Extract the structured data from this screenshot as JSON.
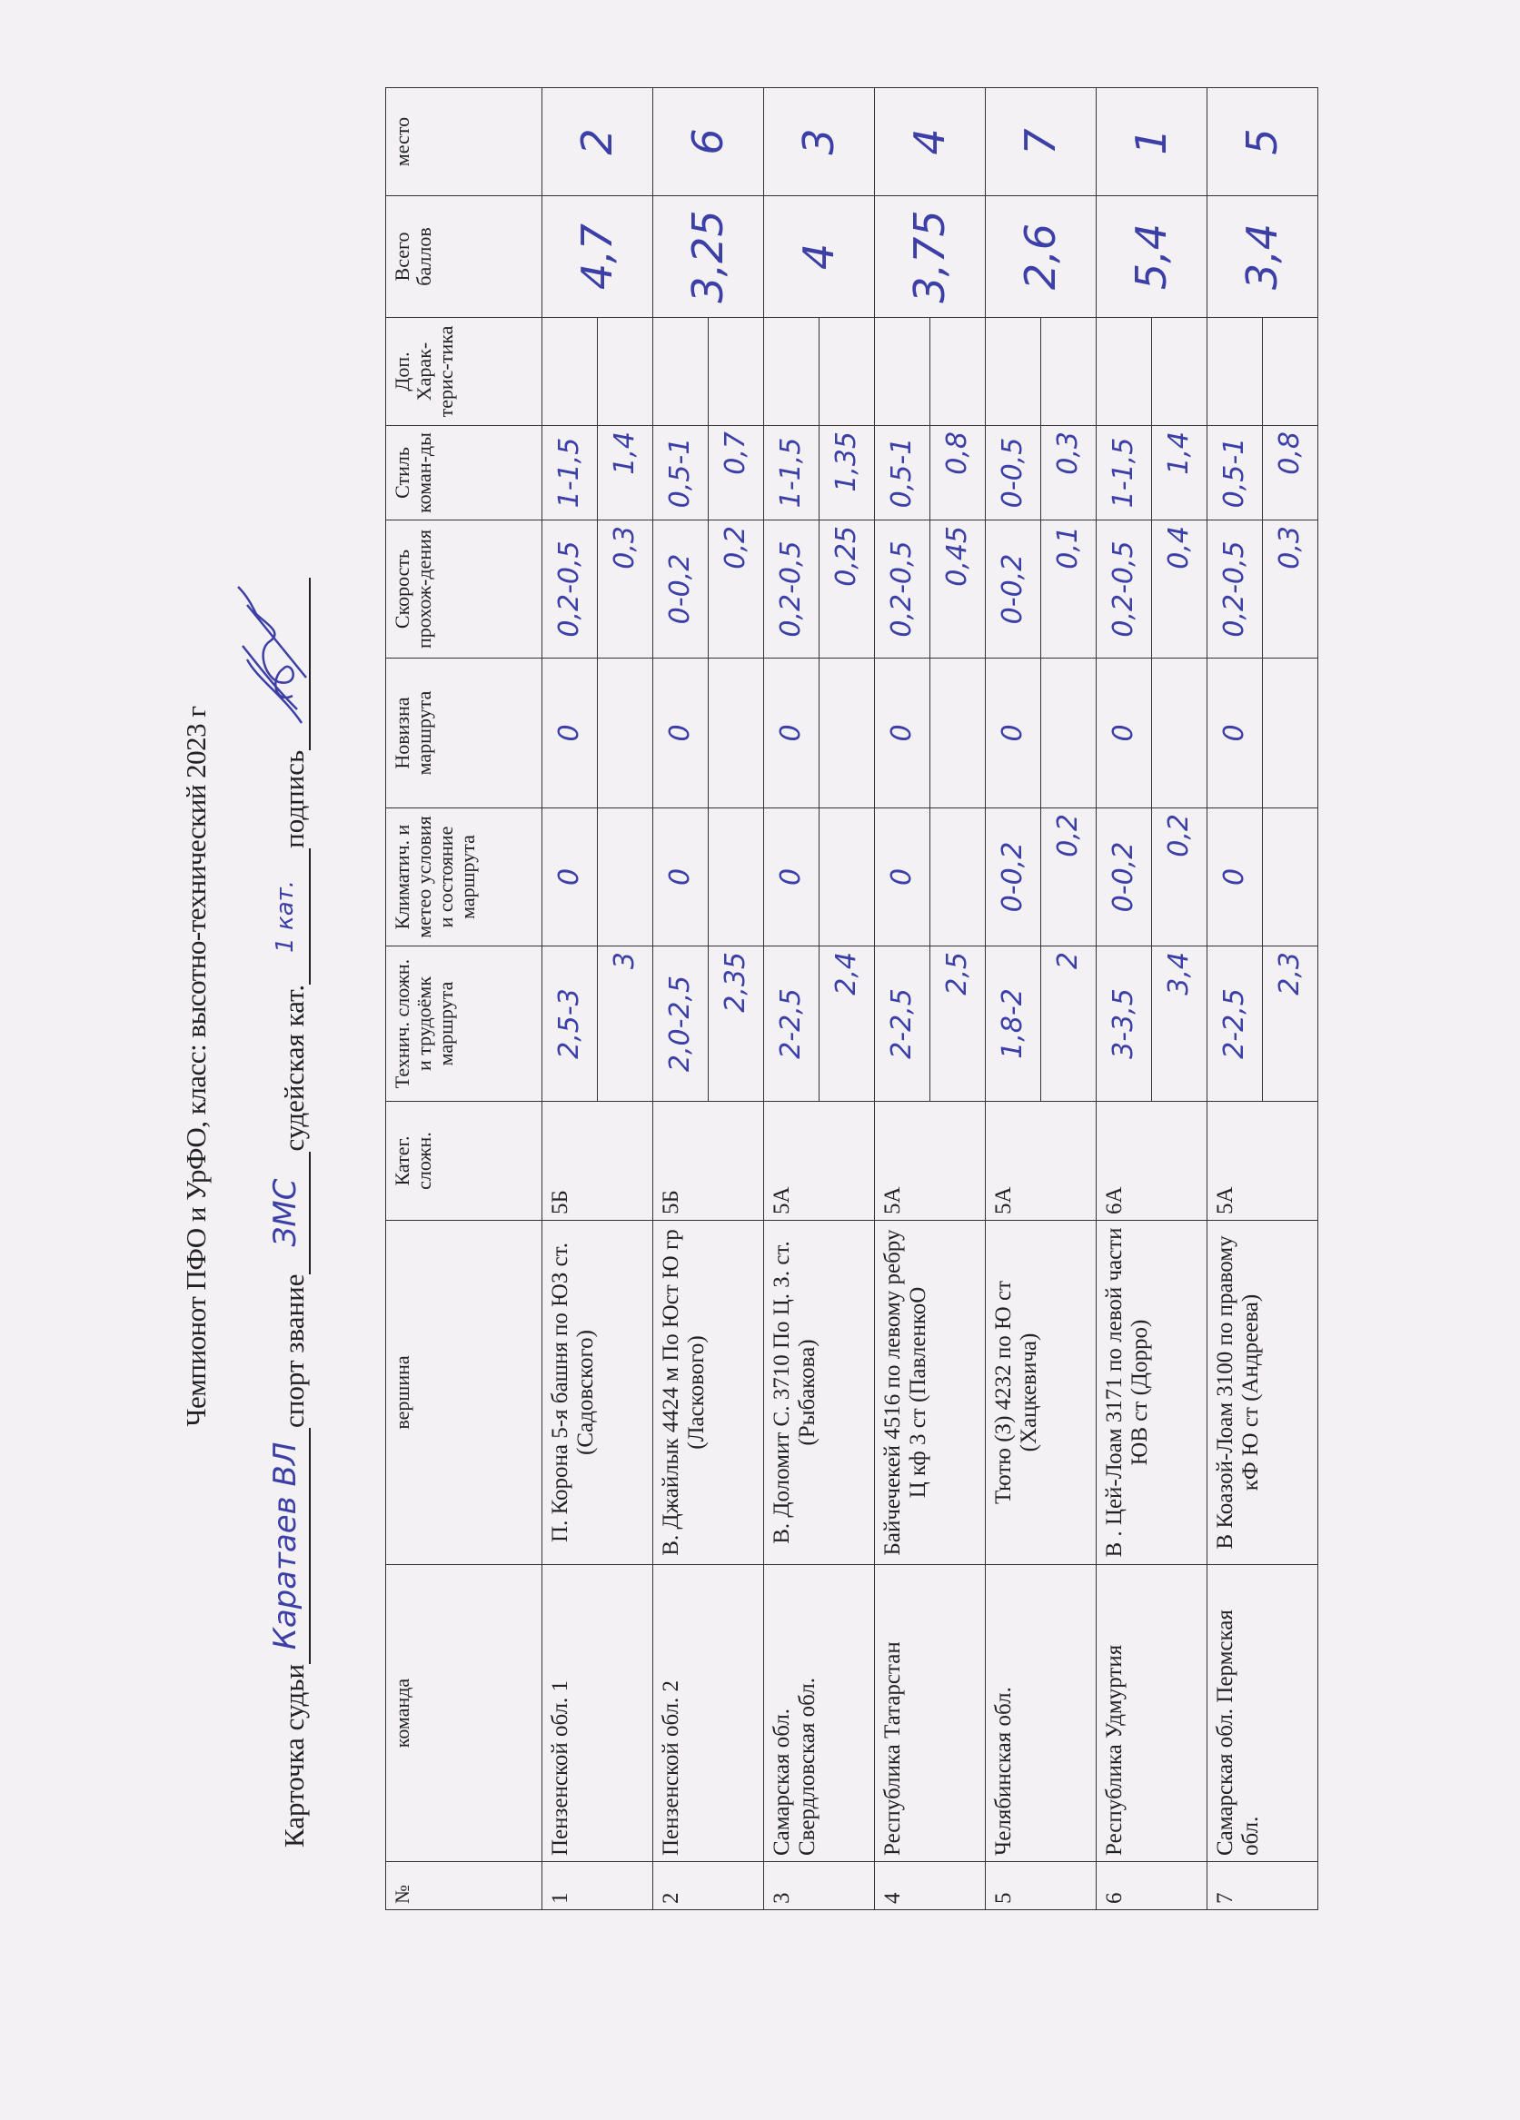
{
  "title": "Чемпионот ПФО и УрФО, класс: высотно-технический 2023 г",
  "judge": {
    "card_label": "Карточка судьи",
    "name": "Каратаев ВЛ",
    "rank_label": "спорт звание",
    "rank": "ЗМС",
    "category_label": "судейская кат.",
    "category": "1 кат.",
    "signature_label": "подпись",
    "signature": "handwritten signature"
  },
  "table": {
    "headers": [
      "№",
      "команда",
      "вершина",
      "Катег. сложн.",
      "Технич. сложн. и трудоёмк маршрута",
      "Климатич. и метео условия и состояние маршрута",
      "Новизна маршрута",
      "Скорость прохож-дения",
      "Стиль коман-ды",
      "Доп. Харак-терис-тика",
      "Всего баллов",
      "место"
    ],
    "rows": [
      {
        "num": "1",
        "team": "Пензенской обл. 1",
        "route": "П. Корона 5-я башня по ЮЗ ст. (Садовского)",
        "cat": "5Б",
        "tech": [
          "2,5-3",
          "3"
        ],
        "clim": [
          "0",
          ""
        ],
        "new": [
          "0",
          ""
        ],
        "speed": [
          "0,2-0,5",
          "0,3"
        ],
        "style": [
          "1-1,5",
          "1,4"
        ],
        "extra": [
          "",
          ""
        ],
        "total": "4,7",
        "place": "2"
      },
      {
        "num": "2",
        "team": "Пензенской обл. 2",
        "route": "В. Джайлык 4424 м По Юст Ю гр (Ласкового)",
        "cat": "5Б",
        "tech": [
          "2,0-2,5",
          "2,35"
        ],
        "clim": [
          "0",
          ""
        ],
        "new": [
          "0",
          ""
        ],
        "speed": [
          "0-0,2",
          "0,2"
        ],
        "style": [
          "0,5-1",
          "0,7"
        ],
        "extra": [
          "",
          ""
        ],
        "total": "3,25",
        "place": "6"
      },
      {
        "num": "3",
        "team": "Самарская обл. Свердловская обл.",
        "route": "В. Доломит С. 3710 По Ц. З. ст. (Рыбакова)",
        "cat": "5А",
        "tech": [
          "2-2,5",
          "2,4"
        ],
        "clim": [
          "0",
          ""
        ],
        "new": [
          "0",
          ""
        ],
        "speed": [
          "0,2-0,5",
          "0,25"
        ],
        "style": [
          "1-1,5",
          "1,35"
        ],
        "extra": [
          "",
          ""
        ],
        "total": "4",
        "place": "3"
      },
      {
        "num": "4",
        "team": "Республика Татарстан",
        "route": "Байчечекей 4516 по левому ребру Ц кф 3 ст (ПавленкоО",
        "cat": "5А",
        "tech": [
          "2-2,5",
          "2,5"
        ],
        "clim": [
          "0",
          ""
        ],
        "new": [
          "0",
          ""
        ],
        "speed": [
          "0,2-0,5",
          "0,45"
        ],
        "style": [
          "0,5-1",
          "0,8"
        ],
        "extra": [
          "",
          ""
        ],
        "total": "3,75",
        "place": "4"
      },
      {
        "num": "5",
        "team": "Челябинская обл.",
        "route": "Тютю (З) 4232 по Ю ст (Хацкевича)",
        "cat": "5А",
        "tech": [
          "1,8-2",
          "2"
        ],
        "clim": [
          "0-0,2",
          "0,2"
        ],
        "new": [
          "0",
          ""
        ],
        "speed": [
          "0-0,2",
          "0,1"
        ],
        "style": [
          "0-0,5",
          "0,3"
        ],
        "extra": [
          "",
          ""
        ],
        "total": "2,6",
        "place": "7"
      },
      {
        "num": "6",
        "team": "Республика Удмуртия",
        "route": "В . Цей-Лоам 3171 по левой части ЮВ ст (Дорро)",
        "cat": "6А",
        "tech": [
          "3-3,5",
          "3,4"
        ],
        "clim": [
          "0-0,2",
          "0,2"
        ],
        "new": [
          "0",
          ""
        ],
        "speed": [
          "0,2-0,5",
          "0,4"
        ],
        "style": [
          "1-1,5",
          "1,4"
        ],
        "extra": [
          "",
          ""
        ],
        "total": "5,4",
        "place": "1"
      },
      {
        "num": "7",
        "team": "Самарская обл. Пермская обл.",
        "route": "В Коазой-Лоам 3100 по правому кФ Ю ст (Андреева)",
        "cat": "5А",
        "tech": [
          "2-2,5",
          "2,3"
        ],
        "clim": [
          "0",
          ""
        ],
        "new": [
          "0",
          ""
        ],
        "speed": [
          "0,2-0,5",
          "0,3"
        ],
        "style": [
          "0,5-1",
          "0,8"
        ],
        "extra": [
          "",
          ""
        ],
        "total": "3,4",
        "place": "5"
      }
    ]
  },
  "colors": {
    "ink": "#3b3fa6",
    "paper": "#f3f1f4",
    "print": "#222222"
  }
}
